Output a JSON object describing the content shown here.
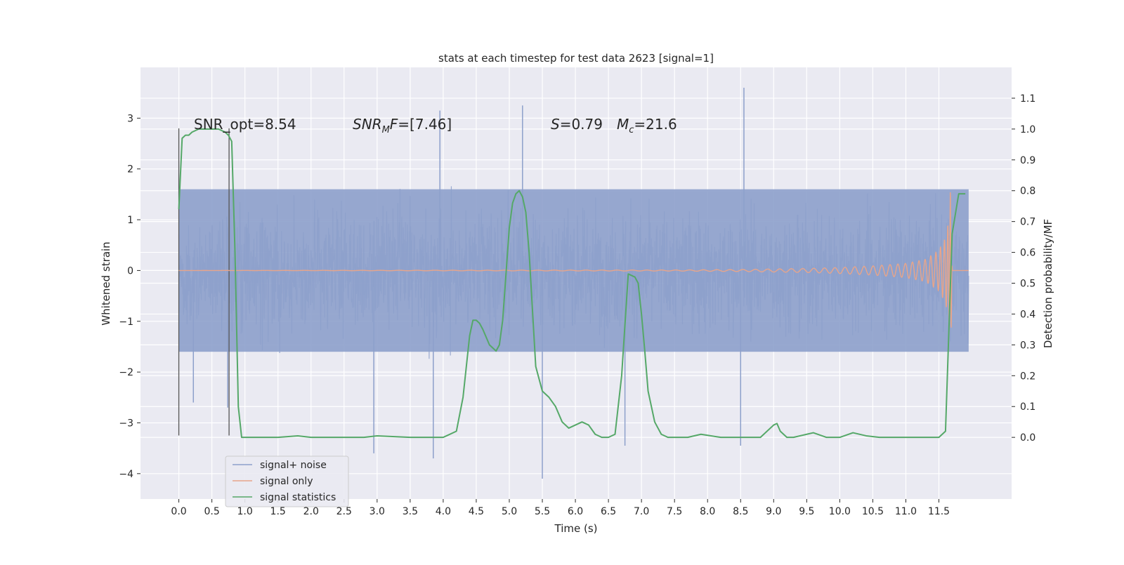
{
  "chart_data": {
    "type": "line",
    "title": "stats at each timestep for test data 2623 [signal=1]",
    "xlabel": "Time (s)",
    "ylabel": "Whitened strain",
    "y2label": "Detection probability/MF",
    "xlim": [
      -0.58,
      12.6
    ],
    "ylim": [
      -4.5,
      4.0
    ],
    "y2lim": [
      -0.2,
      1.2
    ],
    "xticks": [
      0.0,
      0.5,
      1.0,
      1.5,
      2.0,
      2.5,
      3.0,
      3.5,
      4.0,
      4.5,
      5.0,
      5.5,
      6.0,
      6.5,
      7.0,
      7.5,
      8.0,
      8.5,
      9.0,
      9.5,
      10.0,
      10.5,
      11.0,
      11.5
    ],
    "xtick_labels": [
      "0.0",
      "0.5",
      "1.0",
      "1.5",
      "2.0",
      "2.5",
      "3.0",
      "3.5",
      "4.0",
      "4.5",
      "5.0",
      "5.5",
      "6.0",
      "6.5",
      "7.0",
      "7.5",
      "8.0",
      "8.5",
      "9.0",
      "9.5",
      "10.0",
      "10.5",
      "11.0",
      "11.5"
    ],
    "yticks": [
      -4,
      -3,
      -2,
      -1,
      0,
      1,
      2,
      3
    ],
    "ytick_labels": [
      "−4",
      "−3",
      "−2",
      "−1",
      "0",
      "1",
      "2",
      "3"
    ],
    "y2ticks": [
      0.0,
      0.1,
      0.2,
      0.3,
      0.4,
      0.5,
      0.6,
      0.7,
      0.8,
      0.9,
      1.0,
      1.1
    ],
    "y2tick_labels": [
      "0.0",
      "0.1",
      "0.2",
      "0.3",
      "0.4",
      "0.5",
      "0.6",
      "0.7",
      "0.8",
      "0.9",
      "1.0",
      "1.1"
    ],
    "grid": true,
    "legend_placement": "lower-left",
    "annotations": {
      "snr_opt": "SNR_opt=8.54",
      "snr_mf_italic": "SNR",
      "snr_mf_sub": "M",
      "snr_mf_italic2": "F",
      "snr_mf_value": "=[7.46]",
      "s_symbol": "S",
      "s_value": "=0.79",
      "mc_symbol": "M",
      "mc_sub": "c",
      "mc_value": "=21.6"
    },
    "vlines_x": [
      0.0,
      0.76
    ],
    "series": [
      {
        "name": "signal+ noise",
        "color": "#8da0cb",
        "t_end": 11.95,
        "envelope": 1.6,
        "peak_max": 3.6,
        "peak_min": -4.1
      },
      {
        "name": "signal only",
        "color": "#e8a58a",
        "x": [
          0.0,
          7.5,
          8.5,
          9.5,
          10.0,
          10.5,
          11.0,
          11.3,
          11.5,
          11.6,
          11.65,
          11.68,
          11.7,
          11.95
        ],
        "amplitude": [
          0.0,
          0.01,
          0.02,
          0.04,
          0.06,
          0.09,
          0.14,
          0.22,
          0.4,
          0.65,
          1.0,
          1.75,
          0.0,
          0.0
        ]
      },
      {
        "name": "signal statistics",
        "color": "#55a868",
        "axis": "right",
        "x": [
          0.0,
          0.05,
          0.1,
          0.15,
          0.2,
          0.3,
          0.4,
          0.5,
          0.6,
          0.7,
          0.75,
          0.8,
          0.85,
          0.9,
          0.95,
          1.0,
          1.1,
          1.5,
          1.8,
          2.0,
          2.5,
          2.8,
          3.0,
          3.5,
          4.0,
          4.2,
          4.3,
          4.4,
          4.45,
          4.5,
          4.55,
          4.6,
          4.7,
          4.8,
          4.85,
          4.9,
          5.0,
          5.05,
          5.1,
          5.15,
          5.2,
          5.25,
          5.3,
          5.4,
          5.5,
          5.6,
          5.7,
          5.8,
          5.9,
          6.0,
          6.1,
          6.2,
          6.3,
          6.4,
          6.5,
          6.6,
          6.7,
          6.8,
          6.9,
          6.95,
          7.0,
          7.05,
          7.1,
          7.2,
          7.3,
          7.4,
          7.5,
          7.7,
          7.9,
          8.2,
          8.5,
          8.8,
          9.0,
          9.05,
          9.1,
          9.2,
          9.3,
          9.5,
          9.6,
          9.8,
          10.0,
          10.2,
          10.4,
          10.6,
          11.0,
          11.3,
          11.5,
          11.6,
          11.7,
          11.8,
          11.9
        ],
        "y": [
          0.74,
          0.97,
          0.98,
          0.98,
          0.99,
          1.0,
          1.0,
          1.0,
          1.0,
          0.99,
          0.98,
          0.96,
          0.6,
          0.1,
          0.0,
          0.0,
          0.0,
          0.0,
          0.005,
          0.0,
          0.0,
          0.0,
          0.005,
          0.0,
          0.0,
          0.02,
          0.13,
          0.33,
          0.38,
          0.38,
          0.37,
          0.35,
          0.3,
          0.28,
          0.3,
          0.38,
          0.68,
          0.76,
          0.79,
          0.8,
          0.78,
          0.73,
          0.6,
          0.23,
          0.15,
          0.13,
          0.1,
          0.05,
          0.03,
          0.04,
          0.05,
          0.04,
          0.01,
          0.0,
          0.0,
          0.01,
          0.2,
          0.53,
          0.52,
          0.5,
          0.4,
          0.28,
          0.15,
          0.05,
          0.01,
          0.0,
          0.0,
          0.0,
          0.01,
          0.0,
          0.0,
          0.0,
          0.04,
          0.045,
          0.02,
          0.0,
          0.0,
          0.01,
          0.015,
          0.0,
          0.0,
          0.015,
          0.005,
          0.0,
          0.0,
          0.0,
          0.0,
          0.02,
          0.66,
          0.79,
          0.79
        ]
      }
    ]
  }
}
